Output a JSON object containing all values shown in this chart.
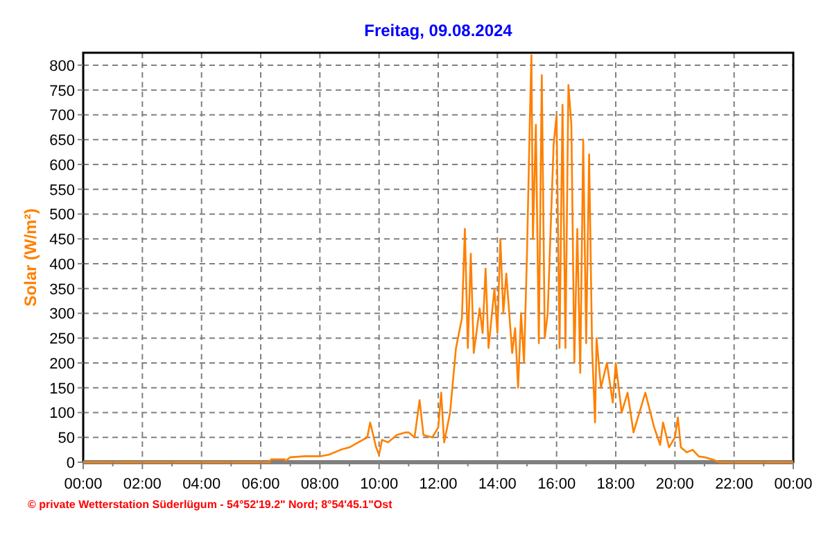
{
  "chart_data": {
    "type": "line",
    "title": "Freitag, 09.08.2024",
    "ylabel": "Solar (W/m²)",
    "annotations": [
      "© private Wetterstation Süderlügum - 54°52'19.2\" Nord; 8°54'45.1\"Ost"
    ],
    "xlim": [
      0,
      24
    ],
    "ylim": [
      0,
      825
    ],
    "xticks": [
      {
        "value": 0,
        "label": "00:00"
      },
      {
        "value": 1,
        "label": null
      },
      {
        "value": 2,
        "label": "02:00"
      },
      {
        "value": 3,
        "label": null
      },
      {
        "value": 4,
        "label": "04:00"
      },
      {
        "value": 5,
        "label": null
      },
      {
        "value": 6,
        "label": "06:00"
      },
      {
        "value": 7,
        "label": null
      },
      {
        "value": 8,
        "label": "08:00"
      },
      {
        "value": 9,
        "label": null
      },
      {
        "value": 10,
        "label": "10:00"
      },
      {
        "value": 11,
        "label": null
      },
      {
        "value": 12,
        "label": "12:00"
      },
      {
        "value": 13,
        "label": null
      },
      {
        "value": 14,
        "label": "14:00"
      },
      {
        "value": 15,
        "label": null
      },
      {
        "value": 16,
        "label": "16:00"
      },
      {
        "value": 17,
        "label": null
      },
      {
        "value": 18,
        "label": "18:00"
      },
      {
        "value": 19,
        "label": null
      },
      {
        "value": 20,
        "label": "20:00"
      },
      {
        "value": 21,
        "label": null
      },
      {
        "value": 22,
        "label": "22:00"
      },
      {
        "value": 23,
        "label": null
      },
      {
        "value": 24,
        "label": "00:00"
      }
    ],
    "yticks": [
      0,
      50,
      100,
      150,
      200,
      250,
      300,
      350,
      400,
      450,
      500,
      550,
      600,
      650,
      700,
      750,
      800
    ],
    "grid": true,
    "marker": "none",
    "line_style": "solid",
    "series": [
      {
        "color": "#ff8000",
        "x": [
          0,
          6.3,
          6.35,
          6.8,
          6.85,
          7.0,
          7.5,
          8.0,
          8.3,
          8.7,
          9.0,
          9.3,
          9.6,
          9.7,
          9.9,
          10.0,
          10.1,
          10.3,
          10.6,
          10.9,
          11.0,
          11.2,
          11.37,
          11.5,
          11.8,
          12.0,
          12.1,
          12.2,
          12.4,
          12.6,
          12.8,
          12.9,
          13.0,
          13.1,
          13.2,
          13.4,
          13.5,
          13.6,
          13.7,
          13.9,
          14.0,
          14.1,
          14.2,
          14.3,
          14.5,
          14.6,
          14.7,
          14.8,
          14.9,
          15.0,
          15.1,
          15.15,
          15.2,
          15.3,
          15.4,
          15.5,
          15.6,
          15.7,
          15.9,
          16.0,
          16.1,
          16.2,
          16.3,
          16.4,
          16.5,
          16.6,
          16.7,
          16.8,
          16.9,
          17.0,
          17.1,
          17.2,
          17.3,
          17.35,
          17.5,
          17.7,
          17.9,
          18.0,
          18.2,
          18.4,
          18.6,
          18.8,
          19.0,
          19.3,
          19.5,
          19.6,
          19.8,
          20.0,
          20.1,
          20.2,
          20.4,
          20.6,
          20.8,
          21.0,
          21.3,
          21.5,
          24
        ],
        "values": [
          0,
          0,
          6,
          6,
          3,
          10,
          12,
          12,
          15,
          25,
          30,
          40,
          50,
          80,
          30,
          15,
          45,
          40,
          55,
          60,
          60,
          50,
          125,
          55,
          50,
          70,
          140,
          40,
          100,
          230,
          290,
          470,
          230,
          420,
          220,
          310,
          260,
          390,
          230,
          350,
          260,
          450,
          300,
          380,
          220,
          270,
          150,
          300,
          200,
          420,
          700,
          820,
          450,
          680,
          240,
          780,
          250,
          300,
          640,
          700,
          230,
          720,
          230,
          760,
          680,
          200,
          470,
          180,
          650,
          240,
          620,
          230,
          80,
          250,
          150,
          200,
          120,
          200,
          100,
          140,
          60,
          100,
          140,
          70,
          35,
          80,
          30,
          50,
          90,
          30,
          20,
          25,
          12,
          10,
          5,
          0,
          0
        ]
      }
    ]
  }
}
